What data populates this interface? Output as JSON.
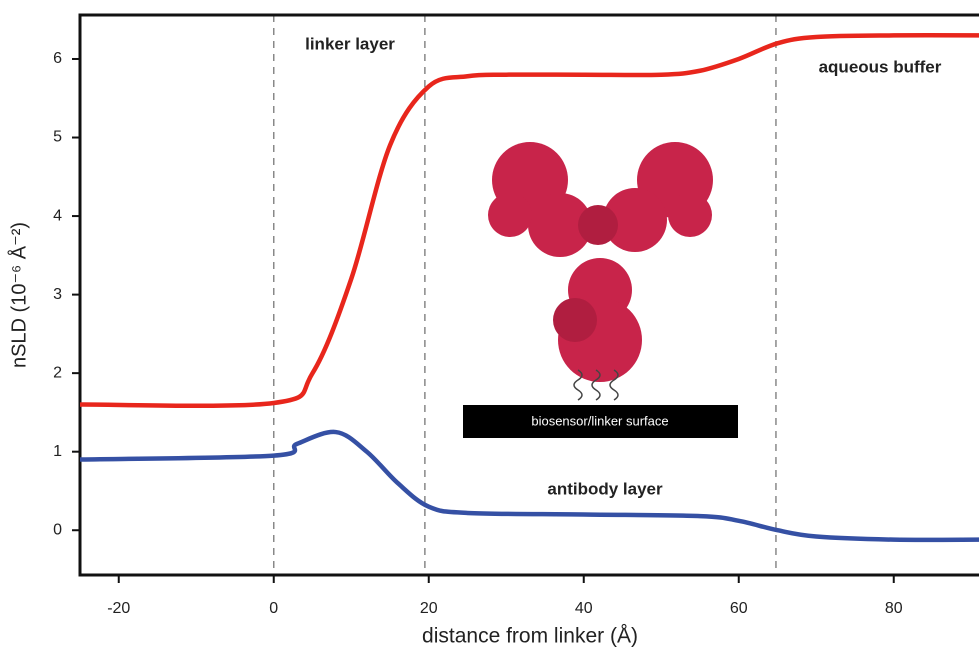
{
  "chart_data": {
    "type": "line",
    "x_label": "distance from linker (Å)",
    "y_label": "nSLD (10⁻⁶ Å⁻²)",
    "xlim": [
      -25,
      91
    ],
    "ylim": [
      -0.57,
      6.56
    ],
    "xticks": [
      -20,
      0,
      20,
      40,
      60,
      80
    ],
    "yticks": [
      0,
      1,
      2,
      3,
      4,
      5,
      6
    ],
    "region_boundaries": [
      0,
      19.5,
      64.8
    ],
    "annotations": {
      "linker": "linker layer",
      "buffer": "aqueous buffer",
      "antibody": "antibody layer",
      "surface": "biosensor/linker surface"
    },
    "series": [
      {
        "color": "#e8261c",
        "x": [
          -25,
          0,
          5,
          10,
          15,
          20,
          25,
          30,
          40,
          50,
          55,
          60,
          65,
          70,
          80,
          91
        ],
        "values": [
          1.6,
          1.62,
          2.0,
          3.2,
          4.9,
          5.65,
          5.78,
          5.8,
          5.8,
          5.8,
          5.85,
          6.0,
          6.2,
          6.28,
          6.3,
          6.3
        ]
      },
      {
        "color": "#3550a4",
        "x": [
          -25,
          0,
          3,
          8,
          12,
          16,
          20,
          25,
          40,
          55,
          60,
          65,
          70,
          80,
          91
        ],
        "values": [
          0.9,
          0.95,
          1.1,
          1.25,
          1.0,
          0.6,
          0.3,
          0.22,
          0.2,
          0.18,
          0.12,
          0.0,
          -0.08,
          -0.12,
          -0.12
        ]
      }
    ]
  }
}
